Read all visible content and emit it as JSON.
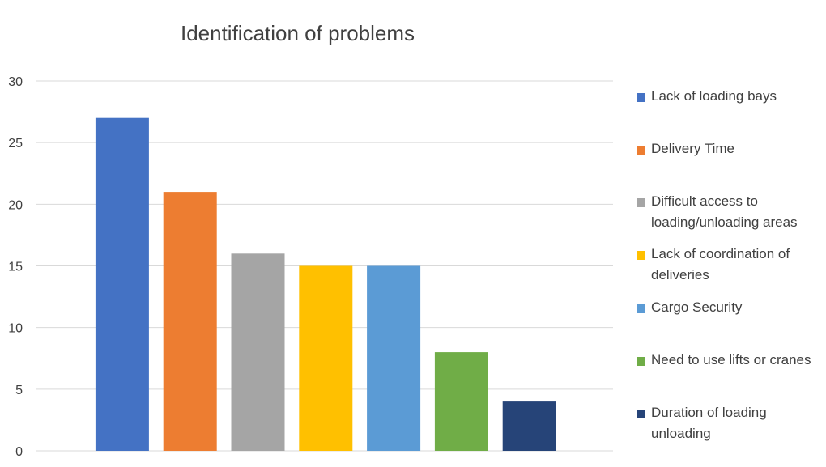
{
  "chart_data": {
    "type": "bar",
    "title": "Identification of problems",
    "categories": [
      "Lack of loading bays",
      "Delivery Time",
      "Difficult access to loading/unloading areas",
      "Lack of coordination of deliveries",
      "Cargo Security",
      "Need to use lifts or cranes",
      "Duration of loading unloading"
    ],
    "values": [
      27,
      21,
      16,
      15,
      15,
      8,
      4
    ],
    "colors": [
      "#4472C4",
      "#ED7D31",
      "#A5A5A5",
      "#FFC000",
      "#5B9BD5",
      "#70AD47",
      "#264478"
    ],
    "ylim": [
      0,
      30
    ],
    "yticks": [
      "0",
      "5",
      "10",
      "15",
      "20",
      "25",
      "30"
    ],
    "grid": true,
    "legend_position": "right",
    "legend": [
      "Lack of loading bays",
      "Delivery Time",
      "Difficult access to loading/unloading areas",
      "Lack of coordination of deliveries",
      "Cargo Security",
      "Need to use lifts or cranes",
      "Duration of loading unloading"
    ]
  }
}
